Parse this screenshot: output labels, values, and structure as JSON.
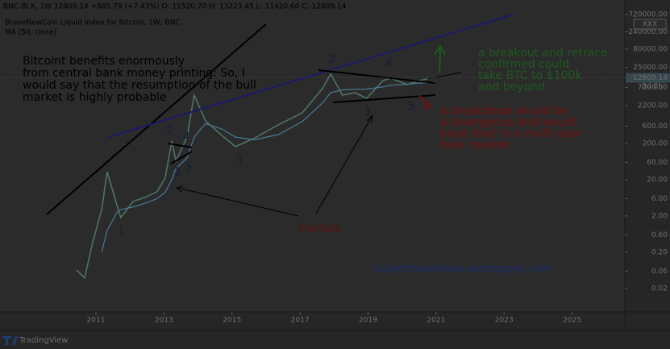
{
  "chart_data": {
    "type": "line",
    "symbol_line": "BNC:BLX, 1W  12809.14 +885.79 (+7.43%) O: 11520.70 H: 13223.45 L: 11420.60 C: 12809.14",
    "title": "BraveNewCoin Liquid Index for Bitcoin, 1W, BNC",
    "log_scale": true,
    "x": [
      2010.43,
      2010.67,
      2010.91,
      2011.17,
      2011.33,
      2011.62,
      2011.73,
      2012.09,
      2012.45,
      2012.8,
      2013.04,
      2013.23,
      2013.35,
      2013.68,
      2013.89,
      2014.22,
      2014.7,
      2015.1,
      2015.64,
      2016.36,
      2017.07,
      2017.66,
      2017.9,
      2018.25,
      2018.61,
      2018.96,
      2019.44,
      2019.67,
      2020.15,
      2020.5,
      2020.98
    ],
    "series": [
      {
        "color": "#4f7266",
        "values": [
          0.065,
          0.039,
          0.39,
          3.0,
          33,
          3.9,
          1.8,
          5.0,
          6.5,
          9.3,
          23,
          233,
          65,
          301,
          4300,
          838,
          333,
          163,
          272,
          649,
          1400,
          6500,
          16300,
          4300,
          5000,
          3500,
          10800,
          12600,
          8400,
          10800,
          13300
        ]
      },
      {
        "name": "MA (50, close)",
        "color": "#4b7a93",
        "values": [
          null,
          null,
          null,
          0.2,
          0.8,
          2.5,
          3,
          3.5,
          4.5,
          6,
          9,
          20,
          40,
          80,
          300,
          700,
          500,
          300,
          250,
          350,
          800,
          2600,
          5000,
          6000,
          6200,
          6300,
          7200,
          8000,
          8600,
          9200,
          9800
        ]
      }
    ],
    "xlim": [
      2008.18,
      2026.55
    ],
    "xticks": [
      2011,
      2013,
      2015,
      2017,
      2019,
      2021,
      2023,
      2025
    ],
    "ylim": [
      0.0045,
      1800000
    ],
    "yticks": [
      {
        "value": 720000,
        "label": "720000.00"
      },
      {
        "value": 240000,
        "label": "240000.00"
      },
      {
        "value": 80000,
        "label": "80000.00"
      },
      {
        "value": 25000,
        "label": "25000.00"
      },
      {
        "value": 7000,
        "label": "7000.00"
      },
      {
        "value": 2200,
        "label": "2200.00"
      },
      {
        "value": 600,
        "label": "600.00"
      },
      {
        "value": 200,
        "label": "200.00"
      },
      {
        "value": 60,
        "label": "60.00"
      },
      {
        "value": 20,
        "label": "20.00"
      },
      {
        "value": 6,
        "label": "6.00"
      },
      {
        "value": 2,
        "label": "2.00"
      },
      {
        "value": 0.6,
        "label": "0.60"
      },
      {
        "value": 0.2,
        "label": "0.20"
      },
      {
        "value": 0.06,
        "label": "0.06"
      },
      {
        "value": 0.02,
        "label": "0.02"
      }
    ],
    "last_price": 12809.14,
    "countdown": "3d 8h",
    "badge": "XXX",
    "annotations": [
      {
        "lines": [
          "Bitcoint benefits enormously",
          "from central bank money printing: So, I",
          "would say that the resumption of the bull",
          "market is highly probable"
        ],
        "color": "#000000"
      },
      {
        "lines": [
          "a breakout and retrace",
          "confirmed could",
          "take BTC to $100k",
          "and beyond"
        ],
        "color": "#1d5a1d"
      },
      {
        "lines": [
          "a breakdown would be",
          "a divergence and would",
          "have lead to a multi-year",
          "bear market"
        ],
        "color": "#741010"
      },
      {
        "lines": [
          "fractals"
        ],
        "color": "#5a1010"
      },
      {
        "lines": [
          "hubertmoolman.wordpress.com"
        ],
        "color": "#1b2a6a"
      }
    ],
    "wave_labels": [
      "1",
      "2",
      "3",
      "4",
      "5",
      "1",
      "2",
      "3",
      "4",
      "5"
    ],
    "watermark": "TradingView"
  }
}
